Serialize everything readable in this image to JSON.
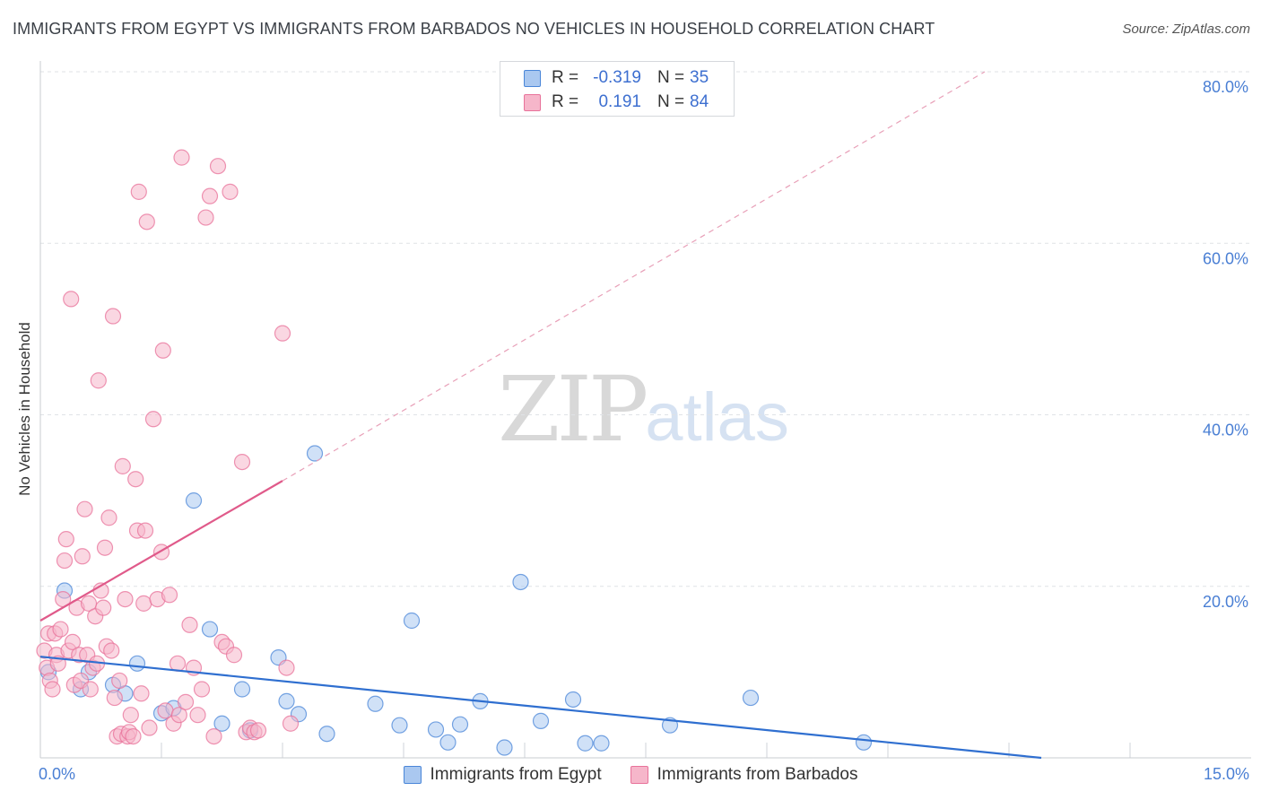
{
  "title": "IMMIGRANTS FROM EGYPT VS IMMIGRANTS FROM BARBADOS NO VEHICLES IN HOUSEHOLD CORRELATION CHART",
  "source": "Source: ZipAtlas.com",
  "watermark": {
    "zip": "ZIP",
    "atlas": "atlas"
  },
  "legend": [
    {
      "r_label": "R =",
      "r_value": "-0.319",
      "n_label": "N =",
      "n_value": "35",
      "color": "#aac8f0"
    },
    {
      "r_label": "R =",
      "r_value": "0.191",
      "n_label": "N =",
      "n_value": "84",
      "color": "#f6b6ca"
    }
  ],
  "bottom_legend": [
    {
      "label": "Immigrants from Egypt",
      "color": "#aac8f0"
    },
    {
      "label": "Immigrants from Barbados",
      "color": "#f6b6ca"
    }
  ],
  "chart_data": {
    "type": "scatter",
    "title": "IMMIGRANTS FROM EGYPT VS IMMIGRANTS FROM BARBADOS NO VEHICLES IN HOUSEHOLD CORRELATION CHART",
    "xlabel": "",
    "ylabel": "No Vehicles in Household",
    "xlim": [
      0,
      15
    ],
    "ylim": [
      0,
      80
    ],
    "x_tick_labels": [
      {
        "value": 0,
        "label": "0.0%"
      },
      {
        "value": 15,
        "label": "15.0%"
      }
    ],
    "y_tick_labels": [
      {
        "value": 20,
        "label": "20.0%"
      },
      {
        "value": 40,
        "label": "40.0%"
      },
      {
        "value": 60,
        "label": "60.0%"
      },
      {
        "value": 80,
        "label": "80.0%"
      }
    ],
    "x_gridlines": [
      1.5,
      3.0,
      4.5,
      6.0,
      7.5,
      9.0,
      10.5,
      12.0,
      13.5
    ],
    "y_gridlines": [
      20,
      40,
      60,
      80
    ],
    "grid": true,
    "series": [
      {
        "name": "Immigrants from Egypt",
        "color": "#4a86d8",
        "fill": "#aac8f0",
        "trend": {
          "x0": 0.0,
          "y0": 11.8,
          "x1": 12.4,
          "y1": 0.0
        },
        "points": [
          [
            0.1,
            10.0
          ],
          [
            0.3,
            19.5
          ],
          [
            0.5,
            8.0
          ],
          [
            0.6,
            10.0
          ],
          [
            0.9,
            8.5
          ],
          [
            1.05,
            7.5
          ],
          [
            1.2,
            11.0
          ],
          [
            1.5,
            5.2
          ],
          [
            1.65,
            5.8
          ],
          [
            1.9,
            30.0
          ],
          [
            2.1,
            15.0
          ],
          [
            2.25,
            4.0
          ],
          [
            2.5,
            8.0
          ],
          [
            2.6,
            3.2
          ],
          [
            2.95,
            11.7
          ],
          [
            3.05,
            6.6
          ],
          [
            3.2,
            5.1
          ],
          [
            3.4,
            35.5
          ],
          [
            3.55,
            2.8
          ],
          [
            4.15,
            6.3
          ],
          [
            4.45,
            3.8
          ],
          [
            4.6,
            16.0
          ],
          [
            4.9,
            3.3
          ],
          [
            5.05,
            1.8
          ],
          [
            5.2,
            3.9
          ],
          [
            5.45,
            6.6
          ],
          [
            5.75,
            1.2
          ],
          [
            5.95,
            20.5
          ],
          [
            6.2,
            4.3
          ],
          [
            6.6,
            6.8
          ],
          [
            6.75,
            1.7
          ],
          [
            6.95,
            1.7
          ],
          [
            7.8,
            3.8
          ],
          [
            8.8,
            7.0
          ],
          [
            10.2,
            1.8
          ]
        ]
      },
      {
        "name": "Immigrants from Barbados",
        "color": "#e8729a",
        "fill": "#f6b6ca",
        "trend": {
          "x0": 0.0,
          "y0": 16.0,
          "x1": 3.0,
          "y1": 32.3
        },
        "trend_ext": {
          "x0": 3.0,
          "y0": 32.3,
          "x1": 11.7,
          "y1": 80.0
        },
        "points": [
          [
            0.05,
            12.5
          ],
          [
            0.08,
            10.5
          ],
          [
            0.1,
            14.5
          ],
          [
            0.12,
            9.0
          ],
          [
            0.15,
            8.0
          ],
          [
            0.18,
            14.5
          ],
          [
            0.2,
            12.0
          ],
          [
            0.22,
            11.0
          ],
          [
            0.25,
            15.0
          ],
          [
            0.28,
            18.5
          ],
          [
            0.3,
            23.0
          ],
          [
            0.32,
            25.5
          ],
          [
            0.35,
            12.5
          ],
          [
            0.38,
            53.5
          ],
          [
            0.4,
            13.5
          ],
          [
            0.42,
            8.5
          ],
          [
            0.45,
            17.5
          ],
          [
            0.48,
            12.0
          ],
          [
            0.5,
            9.0
          ],
          [
            0.52,
            23.5
          ],
          [
            0.55,
            29.0
          ],
          [
            0.58,
            12.0
          ],
          [
            0.6,
            18.0
          ],
          [
            0.62,
            8.0
          ],
          [
            0.65,
            10.5
          ],
          [
            0.68,
            16.5
          ],
          [
            0.7,
            11.0
          ],
          [
            0.72,
            44.0
          ],
          [
            0.75,
            19.5
          ],
          [
            0.78,
            17.5
          ],
          [
            0.8,
            24.5
          ],
          [
            0.82,
            13.0
          ],
          [
            0.85,
            28.0
          ],
          [
            0.88,
            12.5
          ],
          [
            0.9,
            51.5
          ],
          [
            0.92,
            7.0
          ],
          [
            0.95,
            2.5
          ],
          [
            0.98,
            9.0
          ],
          [
            1.0,
            2.8
          ],
          [
            1.02,
            34.0
          ],
          [
            1.05,
            18.5
          ],
          [
            1.08,
            2.5
          ],
          [
            1.1,
            3.0
          ],
          [
            1.12,
            5.0
          ],
          [
            1.15,
            2.5
          ],
          [
            1.18,
            32.5
          ],
          [
            1.2,
            26.5
          ],
          [
            1.22,
            66.0
          ],
          [
            1.25,
            7.5
          ],
          [
            1.28,
            18.0
          ],
          [
            1.3,
            26.5
          ],
          [
            1.32,
            62.5
          ],
          [
            1.35,
            3.5
          ],
          [
            1.4,
            39.5
          ],
          [
            1.45,
            18.5
          ],
          [
            1.5,
            24.0
          ],
          [
            1.52,
            47.5
          ],
          [
            1.55,
            5.5
          ],
          [
            1.6,
            19.0
          ],
          [
            1.65,
            4.0
          ],
          [
            1.7,
            11.0
          ],
          [
            1.72,
            5.0
          ],
          [
            1.75,
            70.0
          ],
          [
            1.8,
            6.5
          ],
          [
            1.85,
            15.5
          ],
          [
            1.9,
            10.5
          ],
          [
            1.95,
            5.0
          ],
          [
            2.0,
            8.0
          ],
          [
            2.05,
            63.0
          ],
          [
            2.1,
            65.5
          ],
          [
            2.15,
            2.5
          ],
          [
            2.2,
            69.0
          ],
          [
            2.25,
            13.5
          ],
          [
            2.3,
            13.0
          ],
          [
            2.35,
            66.0
          ],
          [
            2.4,
            12.0
          ],
          [
            2.5,
            34.5
          ],
          [
            2.55,
            3.0
          ],
          [
            2.6,
            3.5
          ],
          [
            2.65,
            3.0
          ],
          [
            2.7,
            3.2
          ],
          [
            3.0,
            49.5
          ],
          [
            3.05,
            10.5
          ],
          [
            3.1,
            4.0
          ]
        ]
      }
    ]
  }
}
